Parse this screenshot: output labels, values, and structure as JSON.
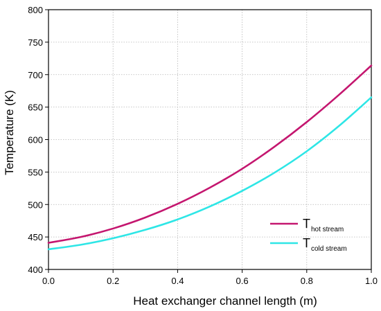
{
  "chart_data": {
    "type": "line",
    "xlabel": "Heat exchanger channel length (m)",
    "ylabel": "Temperature (K)",
    "xlim": [
      0.0,
      1.0
    ],
    "ylim": [
      400,
      800
    ],
    "x_ticks": [
      "0.0",
      "0.2",
      "0.4",
      "0.6",
      "0.8",
      "1.0"
    ],
    "y_ticks": [
      "400",
      "450",
      "500",
      "550",
      "600",
      "650",
      "700",
      "750",
      "800"
    ],
    "grid": true,
    "legend_position": "bottom-right",
    "x": [
      0.0,
      0.1,
      0.2,
      0.3,
      0.4,
      0.5,
      0.6,
      0.7,
      0.8,
      0.9,
      1.0
    ],
    "series": [
      {
        "name_main": "T",
        "name_sub": "hot stream",
        "color": "#c4166f",
        "values": [
          441,
          450,
          463,
          480,
          501,
          526,
          555,
          589,
          627,
          669,
          714
        ]
      },
      {
        "name_main": "T",
        "name_sub": "cold stream",
        "color": "#2ee6e6",
        "values": [
          431,
          438,
          448,
          461,
          477,
          497,
          521,
          549,
          582,
          621,
          665
        ]
      }
    ]
  }
}
